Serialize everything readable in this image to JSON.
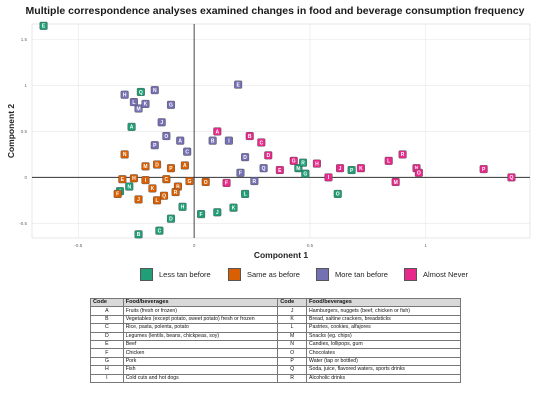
{
  "title": "Multiple correspondence analyses examined changes in food and beverage consumption frequency",
  "chart_data": {
    "type": "scatter",
    "xlabel": "Component 1",
    "ylabel": "Component 2",
    "xlim": [
      -0.7,
      1.45
    ],
    "ylim": [
      -0.66,
      1.67
    ],
    "xticks": [
      -0.5,
      0,
      0.5,
      1
    ],
    "yticks": [
      -0.5,
      0,
      0.5,
      1,
      1.5
    ],
    "xticklabels": [
      "-0.5",
      "0",
      "0.5",
      "1"
    ],
    "yticklabels": [
      "-0.5",
      "0",
      "0.5",
      "1",
      "1.5"
    ],
    "grid": true,
    "legend_position": "bottom",
    "series": [
      {
        "name": "Less tan before",
        "color": "#1f9e77",
        "points": [
          {
            "label": "E",
            "x": -0.65,
            "y": 1.65
          },
          {
            "label": "A",
            "x": -0.27,
            "y": 0.55
          },
          {
            "label": "Q",
            "x": -0.23,
            "y": 0.93
          },
          {
            "label": "I",
            "x": -0.32,
            "y": -0.15
          },
          {
            "label": "N",
            "x": -0.28,
            "y": -0.1
          },
          {
            "label": "B",
            "x": -0.24,
            "y": -0.62
          },
          {
            "label": "C",
            "x": -0.15,
            "y": -0.58
          },
          {
            "label": "D",
            "x": -0.1,
            "y": -0.45
          },
          {
            "label": "H",
            "x": -0.05,
            "y": -0.32
          },
          {
            "label": "F",
            "x": 0.03,
            "y": -0.4
          },
          {
            "label": "J",
            "x": 0.1,
            "y": -0.38
          },
          {
            "label": "K",
            "x": 0.17,
            "y": -0.33
          },
          {
            "label": "L",
            "x": 0.22,
            "y": -0.18
          },
          {
            "label": "M",
            "x": 0.45,
            "y": 0.1
          },
          {
            "label": "R",
            "x": 0.47,
            "y": 0.16
          },
          {
            "label": "G",
            "x": 0.48,
            "y": 0.04
          },
          {
            "label": "O",
            "x": 0.62,
            "y": -0.18
          },
          {
            "label": "P",
            "x": 0.68,
            "y": 0.08
          }
        ]
      },
      {
        "name": "Same as before",
        "color": "#d95f02",
        "points": [
          {
            "label": "E",
            "x": -0.31,
            "y": -0.02
          },
          {
            "label": "N",
            "x": -0.3,
            "y": 0.25
          },
          {
            "label": "F",
            "x": -0.33,
            "y": -0.18
          },
          {
            "label": "I",
            "x": -0.21,
            "y": -0.03
          },
          {
            "label": "M",
            "x": -0.21,
            "y": 0.12
          },
          {
            "label": "D",
            "x": -0.16,
            "y": 0.14
          },
          {
            "label": "H",
            "x": -0.26,
            "y": -0.01
          },
          {
            "label": "J",
            "x": -0.24,
            "y": -0.24
          },
          {
            "label": "K",
            "x": -0.18,
            "y": -0.12
          },
          {
            "label": "L",
            "x": -0.16,
            "y": -0.25
          },
          {
            "label": "C",
            "x": -0.12,
            "y": -0.02
          },
          {
            "label": "B",
            "x": -0.07,
            "y": -0.1
          },
          {
            "label": "A",
            "x": -0.04,
            "y": 0.13
          },
          {
            "label": "G",
            "x": -0.02,
            "y": -0.04
          },
          {
            "label": "O",
            "x": 0.05,
            "y": -0.05
          },
          {
            "label": "P",
            "x": -0.1,
            "y": 0.1
          },
          {
            "label": "Q",
            "x": -0.13,
            "y": -0.2
          },
          {
            "label": "R",
            "x": -0.08,
            "y": -0.16
          }
        ]
      },
      {
        "name": "More tan before",
        "color": "#7570b3",
        "points": [
          {
            "label": "H",
            "x": -0.3,
            "y": 0.9
          },
          {
            "label": "M",
            "x": -0.24,
            "y": 0.75
          },
          {
            "label": "N",
            "x": -0.17,
            "y": 0.95
          },
          {
            "label": "L",
            "x": -0.26,
            "y": 0.82
          },
          {
            "label": "K",
            "x": -0.21,
            "y": 0.8
          },
          {
            "label": "J",
            "x": -0.14,
            "y": 0.6
          },
          {
            "label": "G",
            "x": -0.1,
            "y": 0.79
          },
          {
            "label": "O",
            "x": -0.12,
            "y": 0.45
          },
          {
            "label": "P",
            "x": -0.17,
            "y": 0.35
          },
          {
            "label": "A",
            "x": -0.06,
            "y": 0.4
          },
          {
            "label": "C",
            "x": -0.03,
            "y": 0.28
          },
          {
            "label": "I",
            "x": 0.15,
            "y": 0.4
          },
          {
            "label": "B",
            "x": 0.08,
            "y": 0.4
          },
          {
            "label": "E",
            "x": 0.19,
            "y": 1.01
          },
          {
            "label": "D",
            "x": 0.22,
            "y": 0.22
          },
          {
            "label": "F",
            "x": 0.2,
            "y": 0.05
          },
          {
            "label": "Q",
            "x": 0.3,
            "y": 0.1
          },
          {
            "label": "R",
            "x": 0.26,
            "y": -0.04
          }
        ]
      },
      {
        "name": "Almost Never",
        "color": "#e7298a",
        "points": [
          {
            "label": "A",
            "x": 0.1,
            "y": 0.5
          },
          {
            "label": "B",
            "x": 0.24,
            "y": 0.45
          },
          {
            "label": "C",
            "x": 0.29,
            "y": 0.38
          },
          {
            "label": "D",
            "x": 0.32,
            "y": 0.24
          },
          {
            "label": "E",
            "x": 0.37,
            "y": 0.08
          },
          {
            "label": "F",
            "x": 0.14,
            "y": -0.06
          },
          {
            "label": "G",
            "x": 0.43,
            "y": 0.18
          },
          {
            "label": "H",
            "x": 0.53,
            "y": 0.15
          },
          {
            "label": "I",
            "x": 0.58,
            "y": 0.0
          },
          {
            "label": "J",
            "x": 0.63,
            "y": 0.1
          },
          {
            "label": "K",
            "x": 0.72,
            "y": 0.1
          },
          {
            "label": "L",
            "x": 0.84,
            "y": 0.18
          },
          {
            "label": "M",
            "x": 0.87,
            "y": -0.05
          },
          {
            "label": "N",
            "x": 0.96,
            "y": 0.1
          },
          {
            "label": "O",
            "x": 0.97,
            "y": 0.05
          },
          {
            "label": "P",
            "x": 1.25,
            "y": 0.09
          },
          {
            "label": "Q",
            "x": 1.37,
            "y": 0.0
          },
          {
            "label": "R",
            "x": 0.9,
            "y": 0.25
          }
        ]
      }
    ]
  },
  "table": {
    "headers": [
      "Code",
      "Food/beverages",
      "Code",
      "Food/beverages"
    ],
    "rows": [
      [
        "A",
        "Fruits (fresh or frozen)",
        "J",
        "Hamburgers, nuggets (beef, chicken or fish)"
      ],
      [
        "B",
        "Vegetables (except potato, sweet potato) fresh or frozen",
        "K",
        "Bread, saltine crackers, breadsticks"
      ],
      [
        "C",
        "Rice, pasta, polenta, potato",
        "L",
        "Pastries, cookies, alfajores"
      ],
      [
        "D",
        "Legumes (lentils, beans, chickpeas, soy)",
        "M",
        "Snacks (eg. chips)"
      ],
      [
        "E",
        "Beef",
        "N",
        "Candies, lollipops, gum"
      ],
      [
        "F",
        "Chicken",
        "O",
        "Chocolates"
      ],
      [
        "G",
        "Pork",
        "P",
        "Water (tap or bottled)"
      ],
      [
        "H",
        "Fish",
        "Q",
        "Soda, juice, flavored waters, sports drinks"
      ],
      [
        "I",
        "Cold cuts and hot dogs",
        "R",
        "Alcoholic drinks"
      ]
    ]
  }
}
